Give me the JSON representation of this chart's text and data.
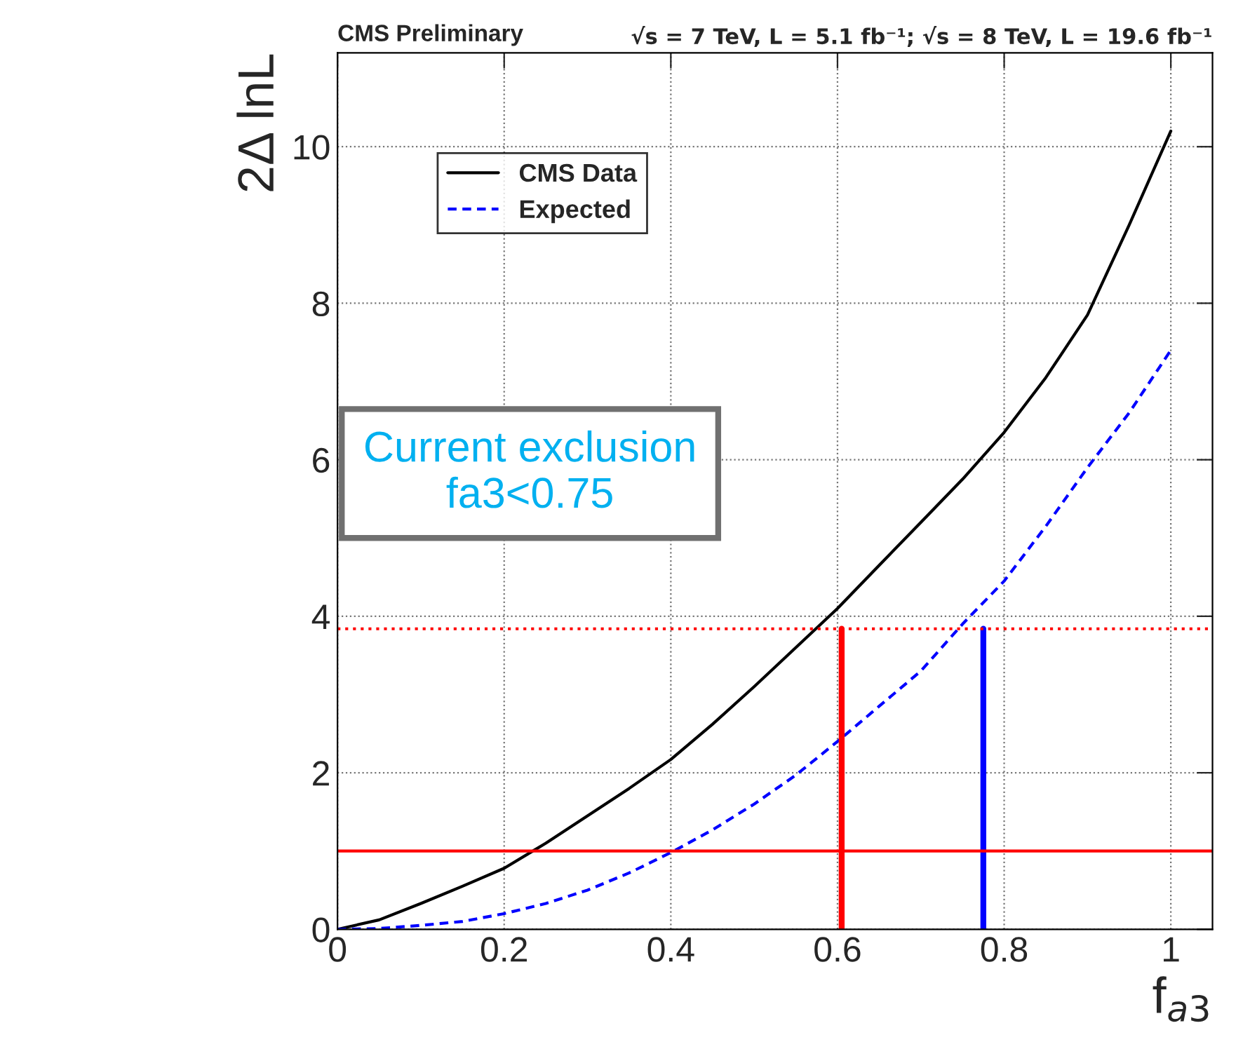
{
  "chart_data": {
    "type": "line",
    "title": "CMS Preliminary",
    "subtitle": "√s = 7 TeV, L = 5.1 fb⁻¹; √s = 8 TeV, L = 19.6 fb⁻¹",
    "xlabel": "f$_{a3}$",
    "ylabel": "2Δ lnL",
    "annotations": [
      "Current exclusion\nfa3<0.75"
    ],
    "series": [
      {
        "name": "CMS Data",
        "color": "#000000",
        "line_style": "solid",
        "x": [
          0,
          0.05,
          0.1,
          0.15,
          0.2,
          0.25,
          0.3,
          0.35,
          0.4,
          0.45,
          0.5,
          0.55,
          0.6,
          0.65,
          0.7,
          0.75,
          0.8,
          0.85,
          0.9,
          0.95,
          1.0
        ],
        "values": [
          0,
          0.12,
          0.33,
          0.55,
          0.78,
          1.1,
          1.45,
          1.8,
          2.17,
          2.62,
          3.1,
          3.6,
          4.1,
          4.65,
          5.2,
          5.75,
          6.35,
          7.05,
          7.85,
          9.0,
          10.2
        ]
      },
      {
        "name": "Expected",
        "color": "#0000ff",
        "line_style": "dashed",
        "x": [
          0,
          0.05,
          0.1,
          0.15,
          0.2,
          0.25,
          0.3,
          0.35,
          0.4,
          0.45,
          0.5,
          0.55,
          0.6,
          0.65,
          0.7,
          0.75,
          0.8,
          0.85,
          0.9,
          0.95,
          1.0
        ],
        "values": [
          0,
          0.01,
          0.05,
          0.1,
          0.2,
          0.33,
          0.5,
          0.72,
          0.98,
          1.27,
          1.6,
          1.97,
          2.4,
          2.85,
          3.3,
          3.9,
          4.45,
          5.15,
          5.9,
          6.6,
          7.4
        ]
      },
      {
        "color": "#ff0000",
        "line_style": "solid",
        "x": [
          0.605,
          0.605
        ],
        "values": [
          0,
          3.84
        ]
      },
      {
        "color": "#0000ff",
        "line_style": "solid",
        "x": [
          0.775,
          0.775
        ],
        "values": [
          0,
          3.84
        ]
      }
    ],
    "ref_lines": [
      {
        "axis": "y",
        "value": 3.84,
        "color": "#ff0000",
        "line_style": "dotted"
      },
      {
        "axis": "y",
        "value": 1,
        "color": "#ff0000",
        "line_style": "solid"
      }
    ],
    "xlim": [
      0,
      1.05
    ],
    "ylim": [
      0,
      11.2
    ],
    "xticks": [
      0,
      0.2,
      0.4,
      0.6,
      0.8,
      1
    ],
    "yticks": [
      0,
      2,
      4,
      6,
      8,
      10
    ],
    "grid": true,
    "legend": "top left"
  }
}
